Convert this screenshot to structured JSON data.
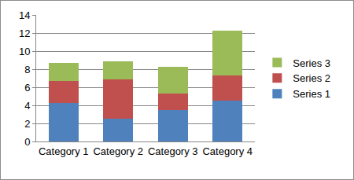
{
  "chart_data": {
    "type": "bar",
    "stacked": true,
    "categories": [
      "Category 1",
      "Category 2",
      "Category 3",
      "Category 4"
    ],
    "series": [
      {
        "name": "Series 1",
        "color": "#4f81bd",
        "values": [
          4.3,
          2.5,
          3.5,
          4.5
        ]
      },
      {
        "name": "Series 2",
        "color": "#c0504d",
        "values": [
          2.4,
          4.4,
          1.8,
          2.8
        ]
      },
      {
        "name": "Series 3",
        "color": "#9bbb59",
        "values": [
          2.0,
          2.0,
          3.0,
          5.0
        ]
      }
    ],
    "ylim": [
      0,
      14
    ],
    "yticks": [
      0,
      2,
      4,
      6,
      8,
      10,
      12,
      14
    ],
    "grid": true,
    "legend": "right"
  }
}
